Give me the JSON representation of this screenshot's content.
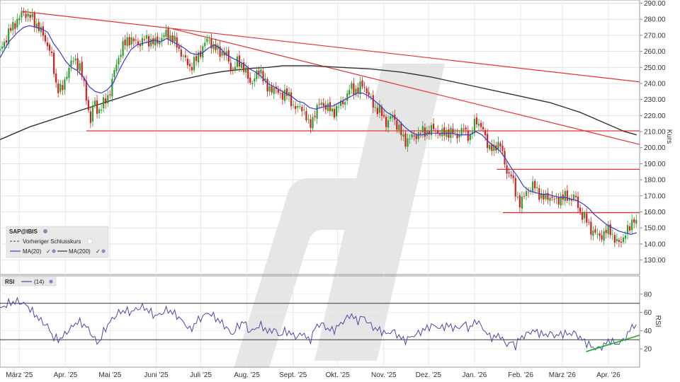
{
  "chart_data": {
    "type": "candlestick",
    "instrument": "SAP@IBIS",
    "price_axis": {
      "label": "Kurs",
      "ylim": [
        121,
        292
      ],
      "ticks": [
        "130.00",
        "140.00",
        "150.00",
        "160.00",
        "170.00",
        "180.00",
        "190.00",
        "200.00",
        "210.00",
        "220.00",
        "230.00",
        "240.00",
        "250.00",
        "260.00",
        "270.00",
        "280.00",
        "290.00"
      ]
    },
    "rsi_axis": {
      "label": "RSI",
      "ylim": [
        0,
        100
      ],
      "ticks": [
        "20",
        "40",
        "60",
        "80"
      ],
      "levels": [
        30,
        70
      ]
    },
    "x_axis": {
      "months": [
        "März '25",
        "Apr. '25",
        "Mai '25",
        "Juni '25",
        "Juli '25",
        "Aug. '25",
        "Sept. '25",
        "Okt. '25",
        "Nov. '25",
        "Dez. '25",
        "Jan. '26",
        "Feb. '26",
        "März '26",
        "Apr. '26"
      ],
      "month_days": [
        13,
        44,
        74,
        105,
        135,
        166,
        197,
        227,
        258,
        288,
        319,
        350,
        378,
        409
      ],
      "range_days": [
        0,
        430
      ]
    },
    "legend": {
      "main_title": "SAP@IBIS",
      "prev_close": "Vorheriger Schlusskurs",
      "ma20": "MA(20)",
      "ma200": "MA(200)",
      "rsi_title": "RSI",
      "rsi_period": "(14)"
    },
    "colors": {
      "up": "#2e9e2e",
      "down": "#d02020",
      "ma20": "#3c3ccc",
      "ma200": "#333333",
      "rsi": "#4a4aa8",
      "resistance": "#e83030",
      "support_trend": "#22aa22",
      "watermark": "#e4e4e4"
    },
    "close_path": [
      [
        0,
        260
      ],
      [
        6,
        272
      ],
      [
        12,
        280
      ],
      [
        16,
        284
      ],
      [
        20,
        282
      ],
      [
        26,
        275
      ],
      [
        30,
        268
      ],
      [
        34,
        260
      ],
      [
        38,
        238
      ],
      [
        42,
        236
      ],
      [
        46,
        250
      ],
      [
        50,
        255
      ],
      [
        54,
        250
      ],
      [
        58,
        232
      ],
      [
        61,
        215
      ],
      [
        63,
        230
      ],
      [
        66,
        222
      ],
      [
        70,
        228
      ],
      [
        74,
        235
      ],
      [
        78,
        252
      ],
      [
        82,
        262
      ],
      [
        86,
        268
      ],
      [
        90,
        266
      ],
      [
        94,
        265
      ],
      [
        98,
        268
      ],
      [
        104,
        265
      ],
      [
        108,
        268
      ],
      [
        112,
        271
      ],
      [
        116,
        268
      ],
      [
        120,
        262
      ],
      [
        124,
        255
      ],
      [
        128,
        250
      ],
      [
        132,
        255
      ],
      [
        136,
        262
      ],
      [
        140,
        268
      ],
      [
        144,
        262
      ],
      [
        148,
        260
      ],
      [
        152,
        258
      ],
      [
        156,
        248
      ],
      [
        160,
        254
      ],
      [
        164,
        250
      ],
      [
        168,
        240
      ],
      [
        172,
        245
      ],
      [
        176,
        248
      ],
      [
        180,
        235
      ],
      [
        184,
        238
      ],
      [
        188,
        232
      ],
      [
        192,
        235
      ],
      [
        196,
        228
      ],
      [
        200,
        224
      ],
      [
        204,
        225
      ],
      [
        208,
        212
      ],
      [
        212,
        223
      ],
      [
        216,
        228
      ],
      [
        220,
        225
      ],
      [
        224,
        222
      ],
      [
        228,
        226
      ],
      [
        232,
        230
      ],
      [
        236,
        238
      ],
      [
        240,
        235
      ],
      [
        244,
        240
      ],
      [
        248,
        232
      ],
      [
        252,
        225
      ],
      [
        256,
        222
      ],
      [
        260,
        215
      ],
      [
        264,
        220
      ],
      [
        268,
        212
      ],
      [
        272,
        204
      ],
      [
        276,
        206
      ],
      [
        280,
        208
      ],
      [
        284,
        210
      ],
      [
        288,
        210
      ],
      [
        292,
        212
      ],
      [
        296,
        208
      ],
      [
        300,
        210
      ],
      [
        304,
        209
      ],
      [
        308,
        208
      ],
      [
        312,
        212
      ],
      [
        316,
        206
      ],
      [
        320,
        218
      ],
      [
        324,
        212
      ],
      [
        328,
        202
      ],
      [
        332,
        198
      ],
      [
        336,
        205
      ],
      [
        340,
        185
      ],
      [
        344,
        184
      ],
      [
        346,
        172
      ],
      [
        348,
        168
      ],
      [
        350,
        166
      ],
      [
        354,
        172
      ],
      [
        358,
        177
      ],
      [
        362,
        172
      ],
      [
        366,
        168
      ],
      [
        370,
        170
      ],
      [
        374,
        166
      ],
      [
        378,
        170
      ],
      [
        382,
        168
      ],
      [
        386,
        170
      ],
      [
        390,
        160
      ],
      [
        394,
        155
      ],
      [
        398,
        148
      ],
      [
        402,
        145
      ],
      [
        406,
        146
      ],
      [
        410,
        150
      ],
      [
        414,
        140
      ],
      [
        417,
        142
      ],
      [
        420,
        145
      ],
      [
        423,
        150
      ],
      [
        426,
        157
      ],
      [
        428,
        151
      ]
    ],
    "ma20_path": [
      [
        0,
        256
      ],
      [
        6,
        266
      ],
      [
        12,
        272
      ],
      [
        16,
        275
      ],
      [
        20,
        276
      ],
      [
        24,
        275
      ],
      [
        28,
        274
      ],
      [
        32,
        272
      ],
      [
        36,
        265
      ],
      [
        40,
        260
      ],
      [
        44,
        254
      ],
      [
        48,
        250
      ],
      [
        52,
        248
      ],
      [
        56,
        244
      ],
      [
        60,
        238
      ],
      [
        64,
        235
      ],
      [
        68,
        234
      ],
      [
        72,
        236
      ],
      [
        76,
        240
      ],
      [
        80,
        248
      ],
      [
        84,
        255
      ],
      [
        88,
        261
      ],
      [
        92,
        264
      ],
      [
        96,
        265
      ],
      [
        100,
        266
      ],
      [
        104,
        267
      ],
      [
        108,
        266
      ],
      [
        112,
        268
      ],
      [
        116,
        266
      ],
      [
        120,
        264
      ],
      [
        124,
        262
      ],
      [
        128,
        259
      ],
      [
        132,
        258
      ],
      [
        136,
        259
      ],
      [
        140,
        262
      ],
      [
        144,
        264
      ],
      [
        148,
        262
      ],
      [
        152,
        258
      ],
      [
        156,
        256
      ],
      [
        160,
        254
      ],
      [
        164,
        252
      ],
      [
        168,
        249
      ],
      [
        172,
        247
      ],
      [
        176,
        244
      ],
      [
        180,
        240
      ],
      [
        184,
        238
      ],
      [
        188,
        236
      ],
      [
        192,
        234
      ],
      [
        196,
        232
      ],
      [
        200,
        229
      ],
      [
        204,
        228
      ],
      [
        208,
        225
      ],
      [
        212,
        224
      ],
      [
        216,
        225
      ],
      [
        220,
        226
      ],
      [
        224,
        226
      ],
      [
        228,
        228
      ],
      [
        232,
        230
      ],
      [
        236,
        232
      ],
      [
        240,
        234
      ],
      [
        244,
        234
      ],
      [
        248,
        232
      ],
      [
        252,
        229
      ],
      [
        256,
        226
      ],
      [
        260,
        222
      ],
      [
        264,
        220
      ],
      [
        268,
        217
      ],
      [
        272,
        213
      ],
      [
        276,
        210
      ],
      [
        280,
        208
      ],
      [
        284,
        208
      ],
      [
        288,
        209
      ],
      [
        292,
        209
      ],
      [
        296,
        209
      ],
      [
        300,
        209
      ],
      [
        304,
        209
      ],
      [
        308,
        208
      ],
      [
        312,
        208
      ],
      [
        316,
        208
      ],
      [
        320,
        210
      ],
      [
        324,
        208
      ],
      [
        328,
        204
      ],
      [
        332,
        201
      ],
      [
        336,
        198
      ],
      [
        340,
        193
      ],
      [
        344,
        187
      ],
      [
        348,
        182
      ],
      [
        352,
        176
      ],
      [
        356,
        173
      ],
      [
        360,
        172
      ],
      [
        364,
        171
      ],
      [
        368,
        171
      ],
      [
        372,
        170
      ],
      [
        376,
        169
      ],
      [
        380,
        169
      ],
      [
        384,
        168
      ],
      [
        388,
        167
      ],
      [
        392,
        165
      ],
      [
        396,
        162
      ],
      [
        400,
        158
      ],
      [
        404,
        155
      ],
      [
        408,
        152
      ],
      [
        412,
        150
      ],
      [
        416,
        148
      ],
      [
        420,
        147
      ],
      [
        424,
        146
      ],
      [
        428,
        147
      ]
    ],
    "ma200_path": [
      [
        0,
        205
      ],
      [
        10,
        209
      ],
      [
        20,
        213
      ],
      [
        30,
        216
      ],
      [
        40,
        219
      ],
      [
        50,
        222
      ],
      [
        60,
        225
      ],
      [
        70,
        228
      ],
      [
        80,
        231
      ],
      [
        90,
        234
      ],
      [
        100,
        237
      ],
      [
        110,
        240
      ],
      [
        120,
        242
      ],
      [
        130,
        244
      ],
      [
        140,
        246
      ],
      [
        150,
        247.5
      ],
      [
        160,
        248.5
      ],
      [
        170,
        249.5
      ],
      [
        180,
        250
      ],
      [
        190,
        251
      ],
      [
        200,
        251
      ],
      [
        210,
        251
      ],
      [
        220,
        250.5
      ],
      [
        230,
        250
      ],
      [
        240,
        249.5
      ],
      [
        250,
        249
      ],
      [
        260,
        248
      ],
      [
        270,
        247
      ],
      [
        280,
        245.5
      ],
      [
        290,
        244
      ],
      [
        300,
        242
      ],
      [
        310,
        240
      ],
      [
        320,
        238
      ],
      [
        330,
        236
      ],
      [
        340,
        234
      ],
      [
        350,
        232
      ],
      [
        360,
        230
      ],
      [
        370,
        228
      ],
      [
        380,
        225
      ],
      [
        390,
        222
      ],
      [
        400,
        218
      ],
      [
        410,
        214
      ],
      [
        420,
        210
      ],
      [
        428,
        208
      ]
    ],
    "rsi_path": [
      [
        0,
        64
      ],
      [
        6,
        70
      ],
      [
        12,
        72
      ],
      [
        18,
        68
      ],
      [
        22,
        60
      ],
      [
        28,
        50
      ],
      [
        32,
        45
      ],
      [
        36,
        32
      ],
      [
        40,
        30
      ],
      [
        46,
        40
      ],
      [
        52,
        50
      ],
      [
        58,
        45
      ],
      [
        62,
        35
      ],
      [
        66,
        25
      ],
      [
        70,
        40
      ],
      [
        74,
        50
      ],
      [
        80,
        60
      ],
      [
        84,
        62
      ],
      [
        88,
        60
      ],
      [
        92,
        64
      ],
      [
        96,
        66
      ],
      [
        100,
        62
      ],
      [
        104,
        56
      ],
      [
        108,
        58
      ],
      [
        112,
        63
      ],
      [
        116,
        60
      ],
      [
        120,
        55
      ],
      [
        124,
        48
      ],
      [
        128,
        40
      ],
      [
        132,
        50
      ],
      [
        136,
        55
      ],
      [
        140,
        60
      ],
      [
        144,
        55
      ],
      [
        148,
        50
      ],
      [
        152,
        44
      ],
      [
        156,
        35
      ],
      [
        160,
        45
      ],
      [
        164,
        50
      ],
      [
        168,
        38
      ],
      [
        172,
        43
      ],
      [
        176,
        46
      ],
      [
        180,
        38
      ],
      [
        184,
        42
      ],
      [
        188,
        34
      ],
      [
        192,
        40
      ],
      [
        196,
        36
      ],
      [
        200,
        33
      ],
      [
        204,
        38
      ],
      [
        208,
        27
      ],
      [
        212,
        44
      ],
      [
        216,
        48
      ],
      [
        220,
        42
      ],
      [
        224,
        40
      ],
      [
        228,
        46
      ],
      [
        232,
        52
      ],
      [
        236,
        58
      ],
      [
        240,
        50
      ],
      [
        244,
        56
      ],
      [
        248,
        48
      ],
      [
        252,
        42
      ],
      [
        256,
        40
      ],
      [
        260,
        36
      ],
      [
        264,
        40
      ],
      [
        268,
        34
      ],
      [
        272,
        29
      ],
      [
        276,
        33
      ],
      [
        280,
        36
      ],
      [
        284,
        40
      ],
      [
        288,
        44
      ],
      [
        292,
        46
      ],
      [
        296,
        42
      ],
      [
        300,
        46
      ],
      [
        304,
        44
      ],
      [
        308,
        42
      ],
      [
        312,
        48
      ],
      [
        316,
        42
      ],
      [
        320,
        52
      ],
      [
        324,
        44
      ],
      [
        328,
        35
      ],
      [
        332,
        32
      ],
      [
        336,
        36
      ],
      [
        340,
        24
      ],
      [
        344,
        28
      ],
      [
        346,
        22
      ],
      [
        348,
        28
      ],
      [
        350,
        32
      ],
      [
        354,
        36
      ],
      [
        358,
        40
      ],
      [
        362,
        38
      ],
      [
        366,
        35
      ],
      [
        370,
        37
      ],
      [
        374,
        34
      ],
      [
        378,
        37
      ],
      [
        382,
        36
      ],
      [
        386,
        38
      ],
      [
        390,
        32
      ],
      [
        394,
        27
      ],
      [
        398,
        22
      ],
      [
        402,
        20
      ],
      [
        406,
        24
      ],
      [
        410,
        30
      ],
      [
        414,
        25
      ],
      [
        418,
        28
      ],
      [
        422,
        36
      ],
      [
        426,
        48
      ],
      [
        428,
        42
      ]
    ],
    "horizontal_levels": [
      {
        "y": 210.5,
        "x_start": 58,
        "x_end": 430
      },
      {
        "y": 186.5,
        "x_start": 334,
        "x_end": 430
      },
      {
        "y": 159.5,
        "x_start": 338,
        "x_end": 430
      }
    ],
    "trendlines_price": [
      {
        "x1": 14,
        "y1": 285,
        "x2": 430,
        "y2": 241
      },
      {
        "x1": 116,
        "y1": 274,
        "x2": 430,
        "y2": 202
      }
    ],
    "trendline_rsi": {
      "x1": 394,
      "y1": 17,
      "x2": 430,
      "y2": 35
    }
  }
}
